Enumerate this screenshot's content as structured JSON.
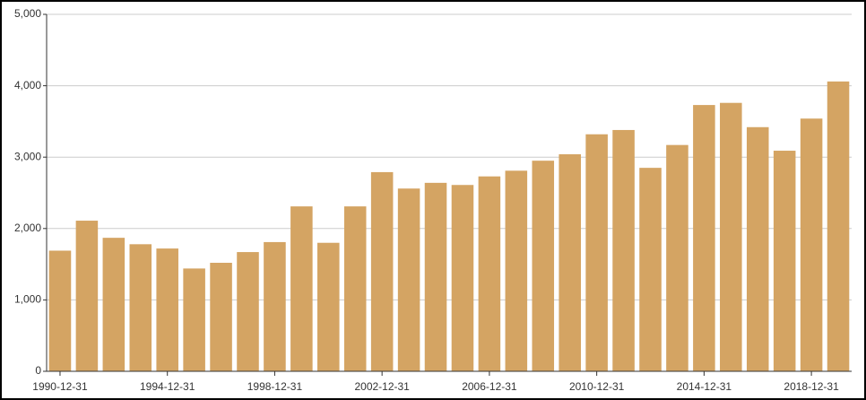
{
  "chart_data": {
    "type": "bar",
    "categories": [
      "1990-12-31",
      null,
      null,
      null,
      "1994-12-31",
      null,
      null,
      null,
      "1998-12-31",
      null,
      null,
      null,
      "2002-12-31",
      null,
      null,
      null,
      "2006-12-31",
      null,
      null,
      null,
      "2010-12-31",
      null,
      null,
      null,
      "2014-12-31",
      null,
      null,
      null,
      "2018-12-31",
      null
    ],
    "values": [
      1690,
      2110,
      1870,
      1780,
      1720,
      1440,
      1520,
      1670,
      1810,
      2310,
      1800,
      2310,
      2790,
      2560,
      2640,
      2610,
      2730,
      2810,
      2950,
      3040,
      3320,
      3380,
      2850,
      3170,
      3730,
      3760,
      3420,
      3090,
      3540,
      4060
    ],
    "color": "#d4a463",
    "ylim": [
      0,
      5000
    ],
    "yticks": [
      0,
      {
        "value": 1000,
        "label": "1,000"
      },
      {
        "value": 2000,
        "label": "2,000"
      },
      {
        "value": 3000,
        "label": "3,000"
      },
      {
        "value": 4000,
        "label": "4,000"
      },
      {
        "value": 5000,
        "label": "5,000"
      }
    ],
    "grid": true
  }
}
